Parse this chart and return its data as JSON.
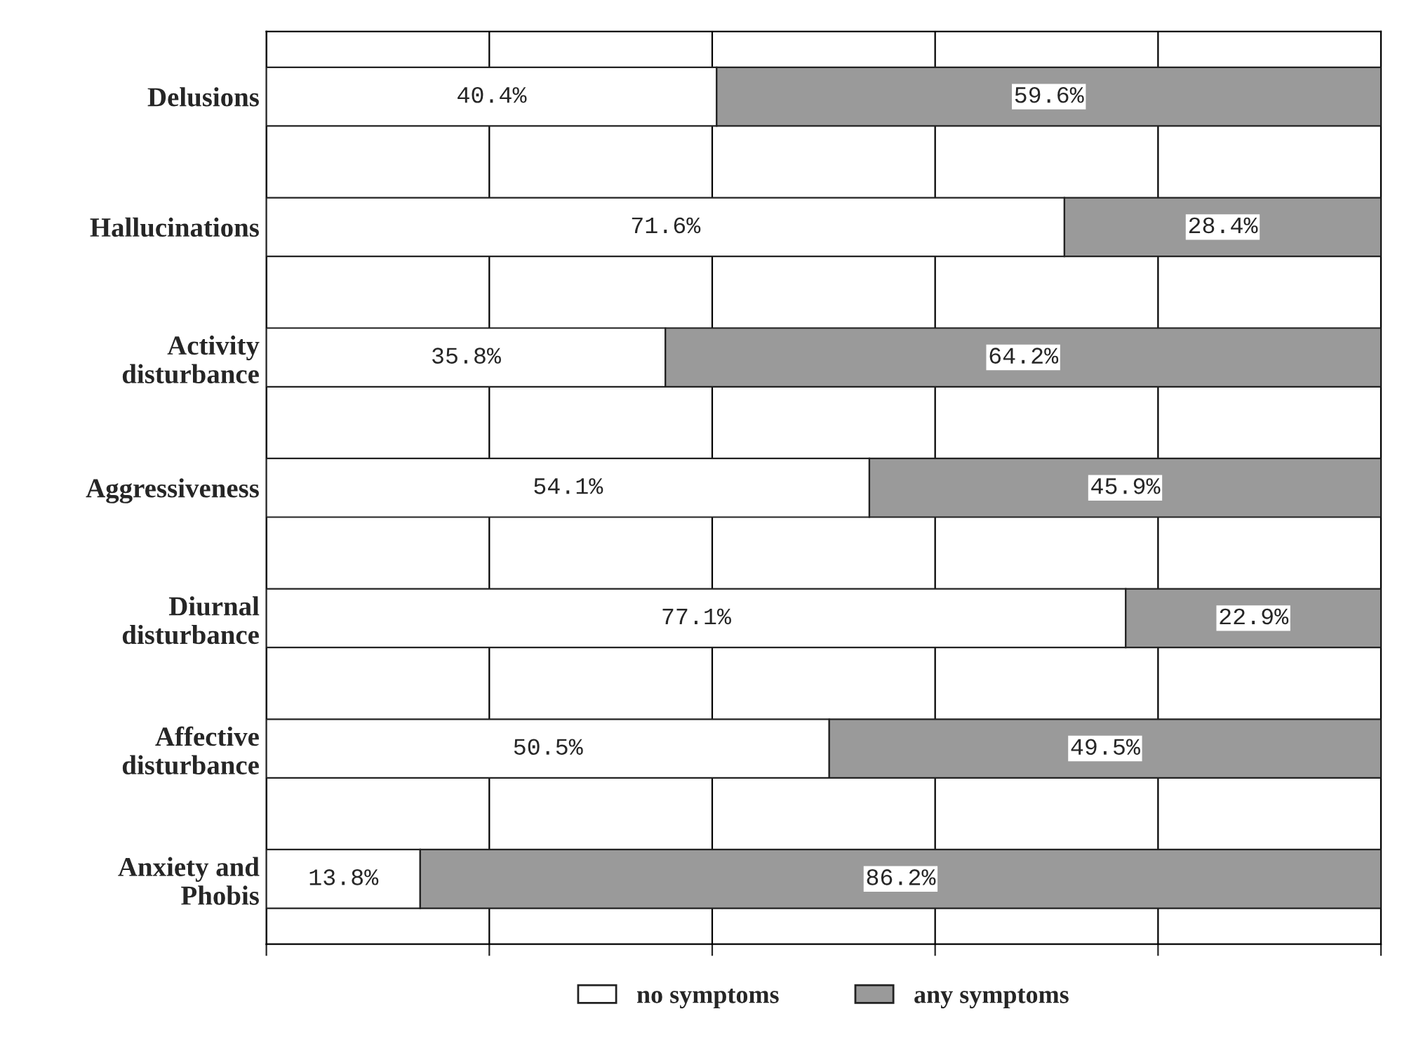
{
  "chart_data": {
    "type": "bar",
    "orientation": "horizontal",
    "stacked": true,
    "categories": [
      "Delusions",
      "Hallucinations",
      "Activity\ndisturbance",
      "Aggressiveness",
      "Diurnal\ndisturbance",
      "Affective\ndisturbance",
      "Anxiety and\nPhobis"
    ],
    "series": [
      {
        "name": "no symptoms",
        "color": "#ffffff",
        "values": [
          40.4,
          71.6,
          35.8,
          54.1,
          77.1,
          50.5,
          13.8
        ],
        "value_labels": [
          "40.4%",
          "71.6%",
          "35.8%",
          "54.1%",
          "77.1%",
          "50.5%",
          "13.8%"
        ]
      },
      {
        "name": "any symptoms",
        "color": "#9a9a9a",
        "values": [
          59.6,
          28.4,
          64.2,
          45.9,
          22.9,
          49.5,
          86.2
        ],
        "value_labels": [
          "59.6%",
          "28.4%",
          "64.2%",
          "45.9%",
          "22.9%",
          "49.5%",
          "86.2%"
        ]
      }
    ],
    "tick_labels": "y",
    "grid": "x",
    "legend": "bottom"
  }
}
